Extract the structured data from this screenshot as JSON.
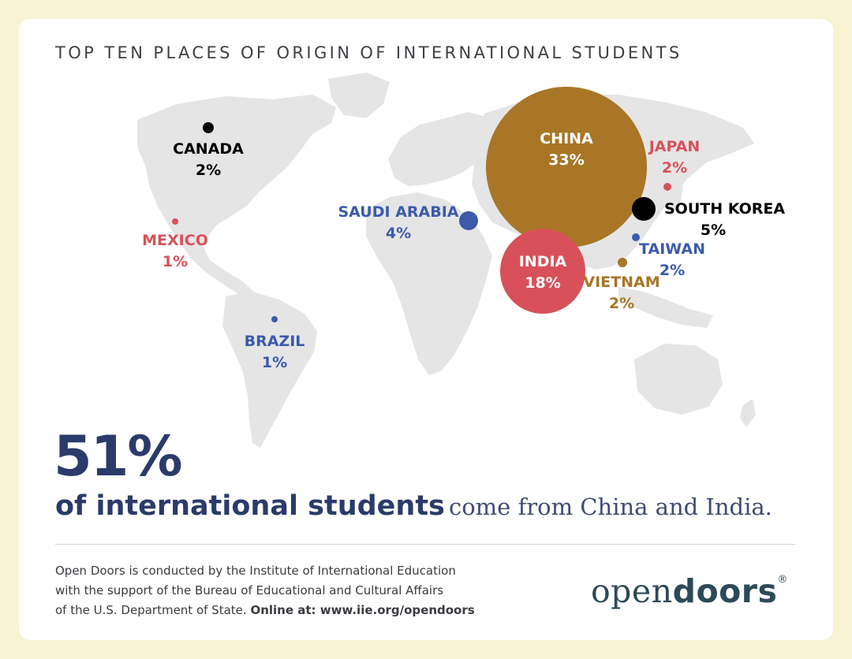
{
  "title": "TOP TEN PLACES OF ORIGIN OF INTERNATIONAL STUDENTS",
  "countries": [
    {
      "id": "china",
      "name": "CHINA",
      "share": "33%",
      "value": 33,
      "color": "#a87626"
    },
    {
      "id": "india",
      "name": "INDIA",
      "share": "18%",
      "value": 18,
      "color": "#d8515a"
    },
    {
      "id": "south-korea",
      "name": "SOUTH KOREA",
      "share": "5%",
      "value": 5,
      "color": "#000000"
    },
    {
      "id": "saudi-arabia",
      "name": "SAUDI ARABIA",
      "share": "4%",
      "value": 4,
      "color": "#3b5aab"
    },
    {
      "id": "canada",
      "name": "CANADA",
      "share": "2%",
      "value": 2,
      "color": "#000000"
    },
    {
      "id": "japan",
      "name": "JAPAN",
      "share": "2%",
      "value": 2,
      "color": "#d8515a"
    },
    {
      "id": "taiwan",
      "name": "TAIWAN",
      "share": "2%",
      "value": 2,
      "color": "#3b5aab"
    },
    {
      "id": "vietnam",
      "name": "VIETNAM",
      "share": "2%",
      "value": 2,
      "color": "#a87626"
    },
    {
      "id": "mexico",
      "name": "MEXICO",
      "share": "1%",
      "value": 1,
      "color": "#d8515a"
    },
    {
      "id": "brazil",
      "name": "BRAZIL",
      "share": "1%",
      "value": 1,
      "color": "#3b5aab"
    }
  ],
  "headline": {
    "percent": "51%",
    "strong": "of international students",
    "rest": "come from China and India."
  },
  "footer": {
    "line1": "Open Doors is conducted by the Institute of International Education",
    "line2": "with the support of the Bureau of Educational and Cultural Affairs",
    "line3_prefix": "of the U.S. Department of State.",
    "line3_bold": "Online at: www.iie.org/opendoors"
  },
  "logo": {
    "light": "open",
    "bold": "doors",
    "mark": "®"
  }
}
